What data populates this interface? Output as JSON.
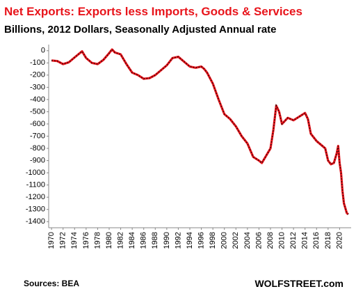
{
  "chart_data": {
    "type": "line",
    "title": "Net Exports:  Exports  less  Imports,  Goods & Services",
    "subtitle": "Billions, 2012 Dollars, Seasonally Adjusted Annual rate",
    "source": "Sources: BEA",
    "brand": "WOLFSTREET.com",
    "x": [
      1970,
      1971,
      1972,
      1973,
      1974,
      1975.3,
      1976,
      1977,
      1978,
      1979,
      1980,
      1980.5,
      1981,
      1982,
      1983,
      1984,
      1985,
      1986,
      1987,
      1988,
      1989,
      1990,
      1991,
      1992,
      1993,
      1994,
      1995,
      1996,
      1996.5,
      1997,
      1998,
      1999,
      2000,
      2001,
      2002,
      2003,
      2004,
      2005,
      2006,
      2006.5,
      2007,
      2008,
      2008.5,
      2009,
      2009.5,
      2010,
      2011,
      2012,
      2013,
      2014,
      2014.5,
      2015,
      2016,
      2017,
      2017.5,
      2018,
      2018.5,
      2019,
      2019.5,
      2019.75,
      2020,
      2020.25,
      2020.5,
      2020.75,
      2021,
      2021.25,
      2021.5
    ],
    "series": [
      {
        "name": "Net Exports",
        "color": "#e8141b",
        "values": [
          -80,
          -85,
          -110,
          -95,
          -55,
          -5,
          -60,
          -100,
          -110,
          -75,
          -20,
          10,
          -15,
          -30,
          -110,
          -180,
          -200,
          -230,
          -225,
          -200,
          -160,
          -120,
          -60,
          -50,
          -90,
          -130,
          -140,
          -130,
          -150,
          -180,
          -270,
          -400,
          -520,
          -560,
          -620,
          -700,
          -760,
          -870,
          -900,
          -920,
          -880,
          -800,
          -650,
          -450,
          -500,
          -600,
          -550,
          -570,
          -540,
          -510,
          -560,
          -680,
          -740,
          -780,
          -800,
          -900,
          -930,
          -920,
          -840,
          -780,
          -920,
          -1000,
          -1150,
          -1250,
          -1290,
          -1330,
          -1340
        ]
      }
    ],
    "xlim": [
      1969.5,
      2022
    ],
    "ylim": [
      -1450,
      50
    ],
    "xticks": [
      1970,
      1972,
      1974,
      1976,
      1978,
      1980,
      1982,
      1984,
      1986,
      1988,
      1990,
      1992,
      1994,
      1996,
      1998,
      2000,
      2002,
      2004,
      2006,
      2008,
      2010,
      2012,
      2014,
      2016,
      2018,
      2020
    ],
    "yticks": [
      0,
      -100,
      -200,
      -300,
      -400,
      -500,
      -600,
      -700,
      -800,
      -900,
      -1000,
      -1100,
      -1200,
      -1300,
      -1400
    ],
    "grid": false
  }
}
